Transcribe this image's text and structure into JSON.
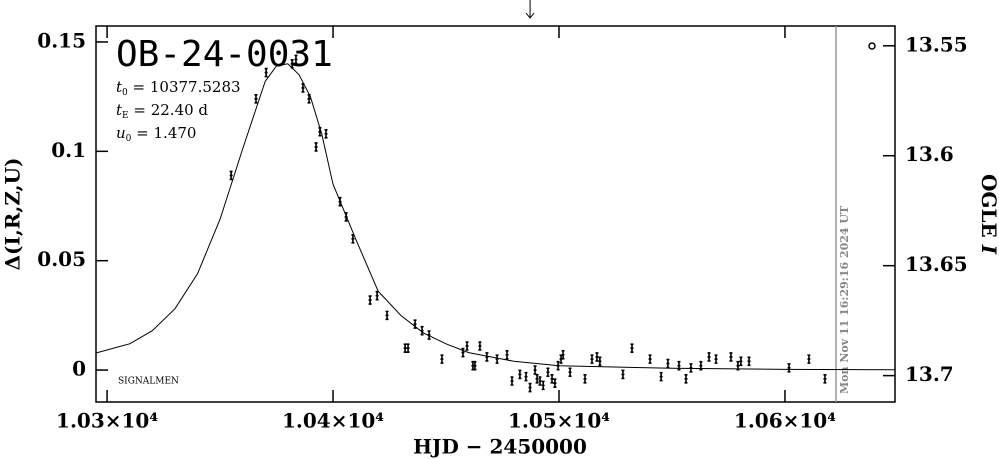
{
  "chart_data": {
    "type": "scatter",
    "title": "OB-24-0031",
    "annotations": [
      {
        "var": "t",
        "sub": "0",
        "rest": " = 10377.5283"
      },
      {
        "var": "t",
        "sub": "E",
        "rest": " = 22.40 d"
      },
      {
        "var": "u",
        "sub": "0",
        "rest": " = 1.470"
      }
    ],
    "credit": "SIGNALMEN",
    "timestamp": "Mon Nov 11 16:29:16 2024 UT",
    "timestamp_x": 10622.6,
    "arrow_x": 10487.2,
    "xlabel": "HJD − 2450000",
    "ylabel": "Δ(I,R,Z,U)",
    "y2label": {
      "text": "OGLE ",
      "italic": "I"
    },
    "color": "#000000",
    "xlim": [
      10295.1,
      10648.7
    ],
    "xticks": [
      {
        "value": 10300,
        "label": "1.03×10⁴"
      },
      {
        "value": 10400,
        "label": "1.04×10⁴"
      },
      {
        "value": 10500,
        "label": "1.05×10⁴"
      },
      {
        "value": 10600,
        "label": "1.06×10⁴"
      }
    ],
    "ylim": [
      -0.0146,
      0.1573
    ],
    "yticks": [
      0,
      0.05,
      0.1,
      0.15
    ],
    "y2lim": [
      13.712,
      13.541
    ],
    "y2ticks": [
      13.55,
      13.6,
      13.65,
      13.7
    ],
    "x": [
      10354.9,
      10365.9,
      10370.4,
      10381.9,
      10383.6,
      10386.7,
      10389.4,
      10392.5,
      10394.2,
      10396.9,
      10403.1,
      10405.8,
      10408.8,
      10416.4,
      10419.5,
      10423.9,
      10431.9,
      10433.2,
      10436.3,
      10439.4,
      10442.5,
      10448.2,
      10457.5,
      10459.3,
      10461.9,
      10462.8,
      10465.0,
      10468.1,
      10472.6,
      10477.0,
      10479.2,
      10482.7,
      10485.4,
      10487.2,
      10489.4,
      10490.3,
      10491.6,
      10493.0,
      10495.1,
      10496.9,
      10498.2,
      10499.6,
      10500.9,
      10501.8,
      10504.9,
      10511.5,
      10514.6,
      10516.8,
      10518.1,
      10528.3,
      10532.3,
      10540.3,
      10545.2,
      10548.2,
      10553.1,
      10556.2,
      10558.4,
      10562.8,
      10566.4,
      10569.5,
      10576.1,
      10579.2,
      10580.5,
      10584.1,
      10601.8,
      10610.6,
      10617.7
    ],
    "values": [
      0.089,
      0.124,
      0.136,
      0.14,
      0.142,
      0.129,
      0.124,
      0.102,
      0.109,
      0.108,
      0.077,
      0.07,
      0.06,
      0.032,
      0.034,
      0.025,
      0.01,
      0.01,
      0.021,
      0.018,
      0.016,
      0.005,
      0.008,
      0.011,
      0.002,
      0.002,
      0.011,
      0.006,
      0.005,
      0.007,
      -0.005,
      -0.002,
      -0.003,
      -0.008,
      0,
      -0.004,
      -0.005,
      -0.007,
      -0.001,
      -0.004,
      -0.006,
      0.002,
      0.005,
      0.007,
      -0.001,
      -0.004,
      0.005,
      0.006,
      0.004,
      -0.002,
      0.01,
      0.005,
      -0.003,
      0.003,
      0.002,
      -0.004,
      0.001,
      0.002,
      0.006,
      0.005,
      0.006,
      0.002,
      0.004,
      0.004,
      0.001,
      0.005,
      -0.004
    ],
    "model": {
      "x": [
        10295.1,
        10310,
        10320,
        10330,
        10340,
        10350,
        10360,
        10370,
        10375,
        10380,
        10385,
        10390,
        10395,
        10400,
        10410,
        10420,
        10430,
        10440,
        10450,
        10460,
        10480,
        10500,
        10550,
        10600,
        10648.7
      ],
      "values": [
        0.0078,
        0.012,
        0.018,
        0.028,
        0.044,
        0.069,
        0.101,
        0.132,
        0.139,
        0.14,
        0.135,
        0.125,
        0.108,
        0.085,
        0.06,
        0.036,
        0.025,
        0.017,
        0.012,
        0.008,
        0.004,
        0.002,
        0.0008,
        0.0003,
        0.0001
      ]
    }
  }
}
